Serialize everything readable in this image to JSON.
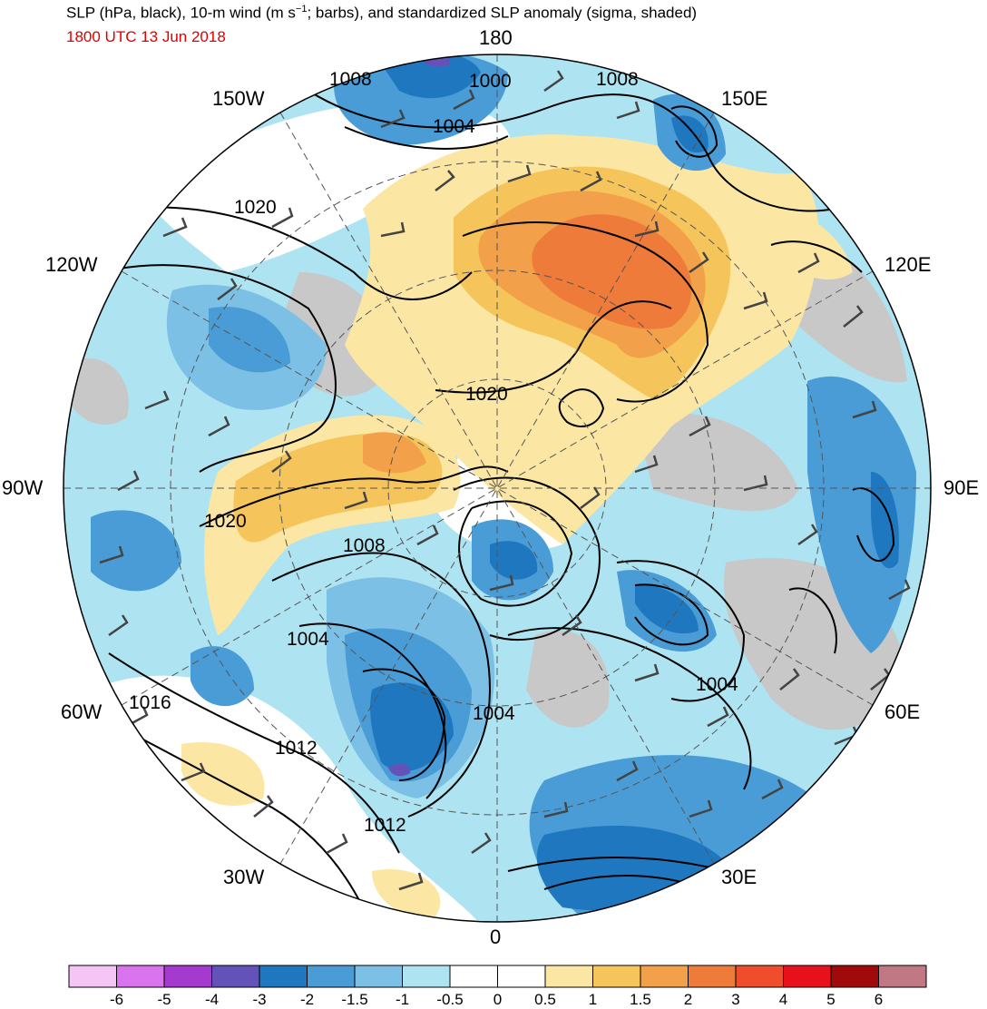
{
  "title": {
    "prefix": "SLP (hPa, black), 10-m wind (m s",
    "superscript": "−1",
    "suffix": "; barbs), and standardized SLP anomaly (sigma, shaded)"
  },
  "valid_time": "1800 UTC 13 Jun 2018",
  "longitude_labels": {
    "lon_180": "180",
    "lon_150W": "150W",
    "lon_150E": "150E",
    "lon_120W": "120W",
    "lon_120E": "120E",
    "lon_90W": "90W",
    "lon_90E": "90E",
    "lon_60W": "60W",
    "lon_60E": "60E",
    "lon_30W": "30W",
    "lon_30E": "30E",
    "lon_0": "0"
  },
  "contour_labels": [
    "1008",
    "1000",
    "1008",
    "1004",
    "1020",
    "1020",
    "1020",
    "1008",
    "1004",
    "1016",
    "1012",
    "1004",
    "1004",
    "1012"
  ],
  "colorbar": {
    "colors": [
      "#f5c6f5",
      "#da74ee",
      "#a53bce",
      "#6352b8",
      "#1f78bf",
      "#4a9cd6",
      "#7cc0e6",
      "#aee4f1",
      "#ffffff",
      "#ffffff",
      "#fbe7a3",
      "#f5c55c",
      "#f3a04a",
      "#ee7b3a",
      "#f04d2d",
      "#e8101a",
      "#a00a0a",
      "#c07885"
    ],
    "ticks": [
      "-6",
      "-5",
      "-4",
      "-3",
      "-2",
      "-1.5",
      "-1",
      "-0.5",
      "0",
      "0.5",
      "1",
      "1.5",
      "2",
      "3",
      "4",
      "5",
      "6"
    ]
  },
  "anomaly_colors": {
    "neg3": "#1f78bf",
    "neg2": "#4a9cd6",
    "neg15": "#7cc0e6",
    "neg1": "#aee4f1",
    "pos05": "#fbe7a3",
    "pos1": "#f5c55c",
    "pos15": "#f3a04a",
    "pos2": "#ee7b3a",
    "purple": "#6352b8",
    "land_gray": "#c8c8c8"
  }
}
